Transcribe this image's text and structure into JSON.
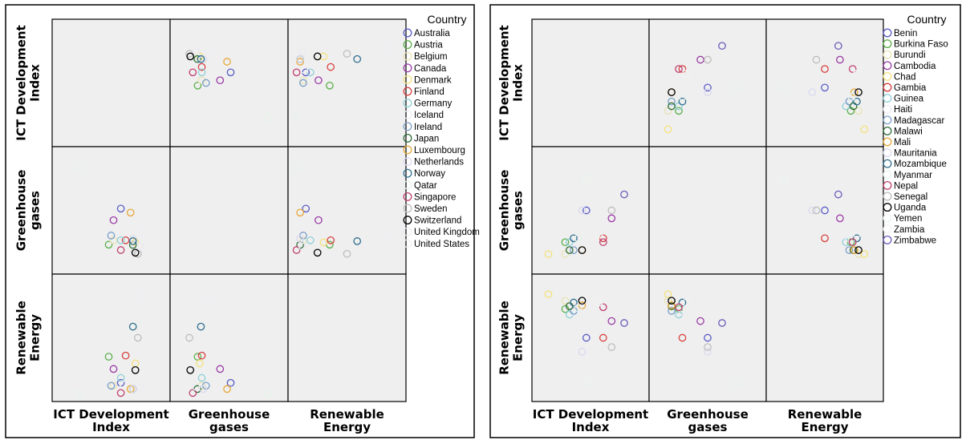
{
  "chart_data": [
    {
      "type": "scatter",
      "variables": [
        "ICT Development Index",
        "Greenhouse gases",
        "Renewable Energy"
      ],
      "axis_labels": [
        "ICT Development\nIndex",
        "Greenhouse\ngases",
        "Renewable\nEnergy"
      ],
      "legend_title": "Country",
      "series": [
        {
          "name": "Australia",
          "color": "#5a5cc8",
          "values": [
            7.9,
            25.8,
            9.6
          ]
        },
        {
          "name": "Austria",
          "color": "#5ab04a",
          "values": [
            7.4,
            9.6,
            33.0
          ]
        },
        {
          "name": "Belgium",
          "color": "#e8e2b4",
          "values": [
            7.6,
            11.5,
            7.0
          ]
        },
        {
          "name": "Canada",
          "color": "#9a3aa6",
          "values": [
            7.6,
            20.6,
            22.0
          ]
        },
        {
          "name": "Denmark",
          "color": "#f4e27c",
          "values": [
            8.5,
            10.6,
            27.0
          ]
        },
        {
          "name": "Finland",
          "color": "#d84040",
          "values": [
            8.1,
            11.6,
            34.0
          ]
        },
        {
          "name": "Germany",
          "color": "#8fd0d8",
          "values": [
            7.9,
            11.6,
            14.0
          ]
        },
        {
          "name": "Iceland",
          "color": "#ececf6",
          "values": [
            8.8,
            14.9,
            87.0
          ]
        },
        {
          "name": "Ireland",
          "color": "#7a9ec8",
          "values": [
            7.5,
            13.7,
            7.0
          ]
        },
        {
          "name": "Japan",
          "color": "#2e6e38",
          "values": [
            8.4,
            9.5,
            4.0
          ]
        },
        {
          "name": "Luxembourg",
          "color": "#e8a83a",
          "values": [
            8.3,
            24.0,
            4.0
          ]
        },
        {
          "name": "Netherlands",
          "color": "#dadaf0",
          "values": [
            8.4,
            12.3,
            4.0
          ]
        },
        {
          "name": "Norway",
          "color": "#2e6e8e",
          "values": [
            8.4,
            11.2,
            60.0
          ]
        },
        {
          "name": "Qatar",
          "color": "#e6f2ea",
          "values": [
            6.2,
            44.2,
            0.0
          ]
        },
        {
          "name": "Singapore",
          "color": "#c04070",
          "values": [
            7.9,
            7.2,
            0.5
          ]
        },
        {
          "name": "Sweden",
          "color": "#bdbdbd",
          "values": [
            8.6,
            5.5,
            50.0
          ]
        },
        {
          "name": "Switzerland",
          "color": "#000000",
          "values": [
            8.5,
            6.0,
            21.0
          ]
        },
        {
          "name": "United Kingdom",
          "color": "#eaeaf2",
          "values": [
            8.7,
            8.8,
            6.0
          ]
        },
        {
          "name": "United States",
          "color": "#f0f0f0",
          "values": [
            8.0,
            19.6,
            8.0
          ]
        }
      ]
    },
    {
      "type": "scatter",
      "variables": [
        "ICT Development Index",
        "Greenhouse gases",
        "Renewable Energy"
      ],
      "axis_labels": [
        "ICT Development\nIndex",
        "Greenhouse\ngases",
        "Renewable\nEnergy"
      ],
      "legend_title": "Country",
      "series": [
        {
          "name": "Benin",
          "color": "#5a5cc8",
          "values": [
            1.9,
            0.6,
            50.0
          ]
        },
        {
          "name": "Burkina Faso",
          "color": "#5ab04a",
          "values": [
            1.4,
            0.2,
            81.0
          ]
        },
        {
          "name": "Burundi",
          "color": "#e8e2b4",
          "values": [
            1.4,
            0.05,
            90.0
          ]
        },
        {
          "name": "Cambodia",
          "color": "#9a3aa6",
          "values": [
            2.5,
            0.5,
            68.0
          ]
        },
        {
          "name": "Chad",
          "color": "#f4e27c",
          "values": [
            1.0,
            0.05,
            97.0
          ]
        },
        {
          "name": "Gambia",
          "color": "#d84040",
          "values": [
            2.3,
            0.25,
            50.0
          ]
        },
        {
          "name": "Guinea",
          "color": "#8fd0d8",
          "values": [
            1.5,
            0.2,
            75.0
          ]
        },
        {
          "name": "Haiti",
          "color": "#ececf6",
          "values": [
            1.6,
            0.25,
            78.0
          ]
        },
        {
          "name": "Madagascar",
          "color": "#7a9ec8",
          "values": [
            1.6,
            0.1,
            79.0
          ]
        },
        {
          "name": "Malawi",
          "color": "#2e6e38",
          "values": [
            1.5,
            0.1,
            84.0
          ]
        },
        {
          "name": "Mali",
          "color": "#e8a83a",
          "values": [
            1.8,
            0.1,
            85.0
          ]
        },
        {
          "name": "Mauritania",
          "color": "#dadaf0",
          "values": [
            1.8,
            0.6,
            35.0
          ]
        },
        {
          "name": "Mozambique",
          "color": "#2e6e8e",
          "values": [
            1.6,
            0.25,
            88.0
          ]
        },
        {
          "name": "Myanmar",
          "color": "#e6f2ea",
          "values": [
            1.7,
            0.25,
            82.0
          ]
        },
        {
          "name": "Nepal",
          "color": "#c04070",
          "values": [
            2.3,
            0.2,
            83.0
          ]
        },
        {
          "name": "Senegal",
          "color": "#bdbdbd",
          "values": [
            2.5,
            0.6,
            40.0
          ]
        },
        {
          "name": "Uganda",
          "color": "#000000",
          "values": [
            1.8,
            0.1,
            90.0
          ]
        },
        {
          "name": "Yemen",
          "color": "#eaf6ee",
          "values": [
            1.9,
            1.0,
            1.0
          ]
        },
        {
          "name": "Zambia",
          "color": "#f2f2f2",
          "values": [
            2.2,
            0.3,
            88.0
          ]
        },
        {
          "name": "Zimbabwe",
          "color": "#6a5cb8",
          "values": [
            2.8,
            0.8,
            66.0
          ]
        }
      ]
    }
  ]
}
